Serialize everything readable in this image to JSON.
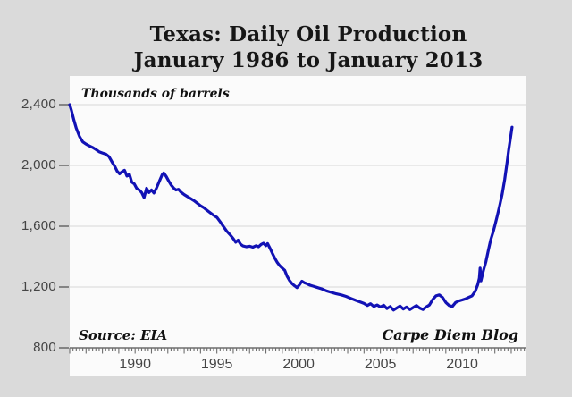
{
  "annotations": {
    "source": "Source: EIA",
    "credit": "Carpe Diem Blog"
  },
  "colors": {
    "page_background": "#dadada",
    "plot_background": "#fbfbfb",
    "gridline": "#d7d7d7",
    "axis": "#6e6e6e",
    "tick_label": "#454545",
    "title_text": "#161616",
    "line": "#1212b5"
  },
  "chart_data": {
    "type": "line",
    "title": "Texas: Daily Oil Production",
    "subtitle": "January 1986 to January 2013",
    "ylabel": "Thousands of barrels",
    "xlabel": "",
    "x_unit": "year",
    "xlim": [
      1986,
      2013.93
    ],
    "ylim": [
      800,
      2588
    ],
    "grid": "horizontal",
    "legend": "none",
    "line_color": "#1212b5",
    "y_ticks": [
      {
        "value": 2400,
        "label": "2,400"
      },
      {
        "value": 2000,
        "label": "2,000"
      },
      {
        "value": 1600,
        "label": "1,600"
      },
      {
        "value": 1200,
        "label": "1,200"
      },
      {
        "value": 800,
        "label": "800"
      }
    ],
    "x_ticks": [
      {
        "value": 1990,
        "label": "1990"
      },
      {
        "value": 1995,
        "label": "1995"
      },
      {
        "value": 2000,
        "label": "2000"
      },
      {
        "value": 2005,
        "label": "2005"
      },
      {
        "value": 2010,
        "label": "2010"
      }
    ],
    "series": [
      {
        "name": "Texas daily oil production (thousands of barrels per day)",
        "points": [
          [
            1986.0,
            2400
          ],
          [
            1986.1,
            2365
          ],
          [
            1986.25,
            2300
          ],
          [
            1986.4,
            2245
          ],
          [
            1986.6,
            2190
          ],
          [
            1986.8,
            2155
          ],
          [
            1987.0,
            2140
          ],
          [
            1987.2,
            2128
          ],
          [
            1987.4,
            2118
          ],
          [
            1987.6,
            2105
          ],
          [
            1987.8,
            2090
          ],
          [
            1988.0,
            2082
          ],
          [
            1988.2,
            2075
          ],
          [
            1988.4,
            2058
          ],
          [
            1988.6,
            2020
          ],
          [
            1988.75,
            1995
          ],
          [
            1988.9,
            1962
          ],
          [
            1989.05,
            1945
          ],
          [
            1989.2,
            1958
          ],
          [
            1989.35,
            1968
          ],
          [
            1989.5,
            1930
          ],
          [
            1989.65,
            1942
          ],
          [
            1989.8,
            1890
          ],
          [
            1989.95,
            1878
          ],
          [
            1990.1,
            1848
          ],
          [
            1990.25,
            1838
          ],
          [
            1990.4,
            1822
          ],
          [
            1990.55,
            1788
          ],
          [
            1990.7,
            1850
          ],
          [
            1990.85,
            1822
          ],
          [
            1991.0,
            1838
          ],
          [
            1991.15,
            1818
          ],
          [
            1991.3,
            1850
          ],
          [
            1991.5,
            1900
          ],
          [
            1991.65,
            1938
          ],
          [
            1991.75,
            1950
          ],
          [
            1991.9,
            1928
          ],
          [
            1992.05,
            1898
          ],
          [
            1992.2,
            1872
          ],
          [
            1992.35,
            1852
          ],
          [
            1992.5,
            1838
          ],
          [
            1992.65,
            1843
          ],
          [
            1992.8,
            1825
          ],
          [
            1993.0,
            1808
          ],
          [
            1993.2,
            1795
          ],
          [
            1993.4,
            1782
          ],
          [
            1993.6,
            1768
          ],
          [
            1993.8,
            1752
          ],
          [
            1994.0,
            1735
          ],
          [
            1994.2,
            1722
          ],
          [
            1994.4,
            1705
          ],
          [
            1994.6,
            1688
          ],
          [
            1994.8,
            1672
          ],
          [
            1995.0,
            1658
          ],
          [
            1995.2,
            1630
          ],
          [
            1995.4,
            1598
          ],
          [
            1995.6,
            1568
          ],
          [
            1995.8,
            1545
          ],
          [
            1996.0,
            1518
          ],
          [
            1996.15,
            1495
          ],
          [
            1996.3,
            1508
          ],
          [
            1996.45,
            1482
          ],
          [
            1996.6,
            1470
          ],
          [
            1996.8,
            1465
          ],
          [
            1997.0,
            1468
          ],
          [
            1997.2,
            1462
          ],
          [
            1997.4,
            1472
          ],
          [
            1997.55,
            1465
          ],
          [
            1997.7,
            1480
          ],
          [
            1997.85,
            1488
          ],
          [
            1998.0,
            1472
          ],
          [
            1998.1,
            1486
          ],
          [
            1998.25,
            1455
          ],
          [
            1998.4,
            1420
          ],
          [
            1998.55,
            1388
          ],
          [
            1998.7,
            1360
          ],
          [
            1998.85,
            1340
          ],
          [
            1999.0,
            1325
          ],
          [
            1999.15,
            1310
          ],
          [
            1999.3,
            1270
          ],
          [
            1999.45,
            1242
          ],
          [
            1999.6,
            1222
          ],
          [
            1999.75,
            1208
          ],
          [
            1999.9,
            1196
          ],
          [
            2000.05,
            1215
          ],
          [
            2000.2,
            1238
          ],
          [
            2000.35,
            1228
          ],
          [
            2000.5,
            1222
          ],
          [
            2000.7,
            1212
          ],
          [
            2000.9,
            1205
          ],
          [
            2001.1,
            1198
          ],
          [
            2001.4,
            1188
          ],
          [
            2001.7,
            1175
          ],
          [
            2002.0,
            1165
          ],
          [
            2002.3,
            1155
          ],
          [
            2002.6,
            1148
          ],
          [
            2002.9,
            1138
          ],
          [
            2003.2,
            1125
          ],
          [
            2003.5,
            1112
          ],
          [
            2003.8,
            1100
          ],
          [
            2004.0,
            1092
          ],
          [
            2004.2,
            1078
          ],
          [
            2004.4,
            1090
          ],
          [
            2004.6,
            1072
          ],
          [
            2004.8,
            1082
          ],
          [
            2005.0,
            1068
          ],
          [
            2005.2,
            1080
          ],
          [
            2005.4,
            1058
          ],
          [
            2005.6,
            1072
          ],
          [
            2005.8,
            1048
          ],
          [
            2006.0,
            1062
          ],
          [
            2006.2,
            1075
          ],
          [
            2006.4,
            1055
          ],
          [
            2006.6,
            1068
          ],
          [
            2006.8,
            1052
          ],
          [
            2007.0,
            1065
          ],
          [
            2007.2,
            1078
          ],
          [
            2007.4,
            1062
          ],
          [
            2007.6,
            1052
          ],
          [
            2007.8,
            1068
          ],
          [
            2008.0,
            1082
          ],
          [
            2008.2,
            1118
          ],
          [
            2008.4,
            1142
          ],
          [
            2008.6,
            1148
          ],
          [
            2008.8,
            1132
          ],
          [
            2009.0,
            1098
          ],
          [
            2009.2,
            1078
          ],
          [
            2009.4,
            1072
          ],
          [
            2009.6,
            1098
          ],
          [
            2009.8,
            1108
          ],
          [
            2010.0,
            1115
          ],
          [
            2010.2,
            1122
          ],
          [
            2010.4,
            1132
          ],
          [
            2010.6,
            1142
          ],
          [
            2010.8,
            1172
          ],
          [
            2010.95,
            1215
          ],
          [
            2011.05,
            1258
          ],
          [
            2011.1,
            1325
          ],
          [
            2011.15,
            1240
          ],
          [
            2011.3,
            1308
          ],
          [
            2011.45,
            1365
          ],
          [
            2011.6,
            1442
          ],
          [
            2011.75,
            1512
          ],
          [
            2011.9,
            1565
          ],
          [
            2012.0,
            1605
          ],
          [
            2012.15,
            1668
          ],
          [
            2012.3,
            1738
          ],
          [
            2012.45,
            1812
          ],
          [
            2012.6,
            1908
          ],
          [
            2012.75,
            2022
          ],
          [
            2012.85,
            2105
          ],
          [
            2012.95,
            2178
          ],
          [
            2013.05,
            2252
          ]
        ]
      }
    ]
  }
}
